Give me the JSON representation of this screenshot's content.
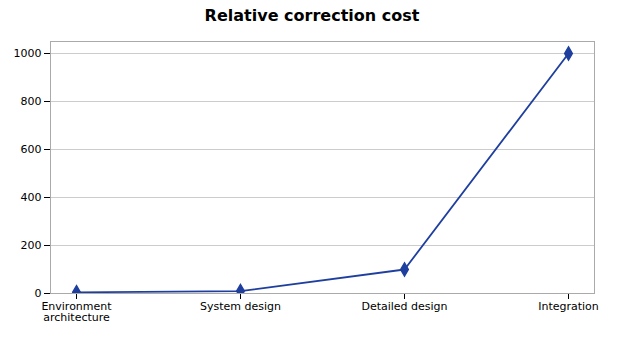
{
  "chart_data": {
    "type": "line",
    "title": "Relative correction cost",
    "categories": [
      "Environment\narchitecture",
      "System design",
      "Detailed design",
      "Integration"
    ],
    "values": [
      5,
      10,
      100,
      1000
    ],
    "color": "#1f3f9f",
    "marker": "diamond",
    "ylim": [
      0,
      1050
    ],
    "yticks": [
      0,
      200,
      400,
      600,
      800,
      1000
    ],
    "grid": true
  }
}
